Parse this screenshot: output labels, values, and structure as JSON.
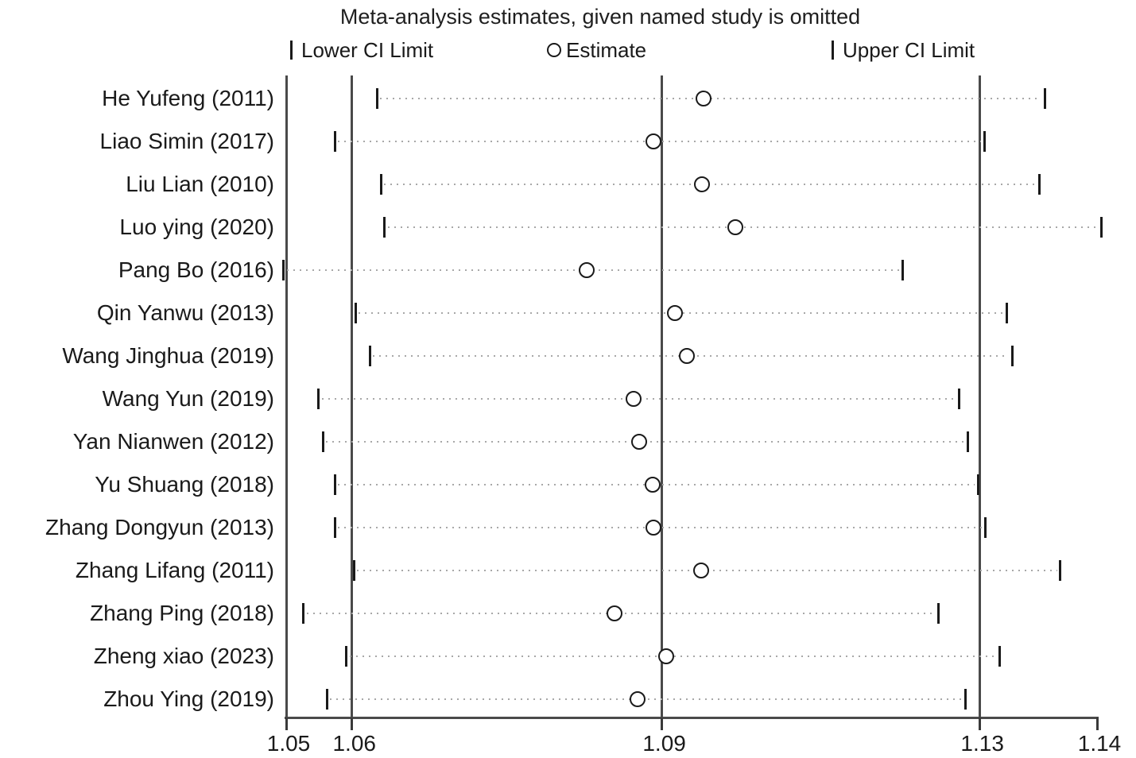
{
  "chart_data": {
    "type": "scatter",
    "subtype": "leave-one-out-sensitivity-forest",
    "title": "Meta-analysis estimates, given named study is omitted",
    "legend": {
      "lower": "Lower CI Limit",
      "estimate": "Estimate",
      "upper": "Upper CI Limit"
    },
    "x_axis": {
      "xlim": [
        1.05,
        1.14
      ],
      "ticks": [
        {
          "label": "1.05",
          "value": 1.05
        },
        {
          "label": "1.06",
          "value": 1.0573
        },
        {
          "label": "1.09",
          "value": 1.0917
        },
        {
          "label": "1.13",
          "value": 1.127
        },
        {
          "label": "1.14",
          "value": 1.14
        }
      ]
    },
    "overall": {
      "lower": 1.0573,
      "estimate": 1.0917,
      "upper": 1.127
    },
    "studies": [
      {
        "label": "He Yufeng (2011)",
        "lower": 1.0601,
        "estimate": 1.0964,
        "upper": 1.1342
      },
      {
        "label": "Liao Simin (2017)",
        "lower": 1.0554,
        "estimate": 1.0908,
        "upper": 1.1275
      },
      {
        "label": "Liu Lian (2010)",
        "lower": 1.0605,
        "estimate": 1.0962,
        "upper": 1.1336
      },
      {
        "label": "Luo ying (2020)",
        "lower": 1.0609,
        "estimate": 1.0999,
        "upper": 1.1405
      },
      {
        "label": "Pang Bo (2016)",
        "lower": 1.0497,
        "estimate": 1.0834,
        "upper": 1.1184
      },
      {
        "label": "Qin Yanwu (2013)",
        "lower": 1.0577,
        "estimate": 1.0932,
        "upper": 1.13
      },
      {
        "label": "Wang Jinghua (2019)",
        "lower": 1.0593,
        "estimate": 1.0945,
        "upper": 1.1306
      },
      {
        "label": "Wang Yun (2019)",
        "lower": 1.0536,
        "estimate": 1.0886,
        "upper": 1.1247
      },
      {
        "label": "Yan Nianwen (2012)",
        "lower": 1.0541,
        "estimate": 1.0892,
        "upper": 1.1257
      },
      {
        "label": "Yu Shuang (2018)",
        "lower": 1.0554,
        "estimate": 1.0907,
        "upper": 1.1268
      },
      {
        "label": "Zhang Dongyun (2013)",
        "lower": 1.0554,
        "estimate": 1.0908,
        "upper": 1.1276
      },
      {
        "label": "Zhang Lifang (2011)",
        "lower": 1.0575,
        "estimate": 1.0961,
        "upper": 1.1359
      },
      {
        "label": "Zhang Ping (2018)",
        "lower": 1.0519,
        "estimate": 1.0865,
        "upper": 1.1224
      },
      {
        "label": "Zheng xiao (2023)",
        "lower": 1.0567,
        "estimate": 1.0922,
        "upper": 1.1292
      },
      {
        "label": "Zhou Ying (2019)",
        "lower": 1.0545,
        "estimate": 1.089,
        "upper": 1.1254
      }
    ],
    "colors": {
      "background": "#ffffff",
      "text": "#1a1a1a",
      "reference_lines": "#4a4a4a",
      "ci_ticks": "#1a1a1a",
      "estimate_circle_stroke": "#1a1a1a",
      "dotted_line": "#a8a8a8"
    }
  }
}
